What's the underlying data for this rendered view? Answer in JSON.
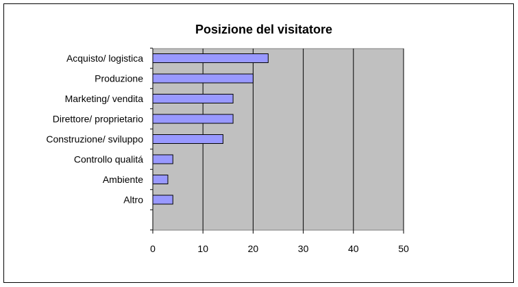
{
  "chart_data": {
    "type": "bar",
    "orientation": "horizontal",
    "title": "Posizione del visitatore",
    "categories": [
      "Acquisto/ logistica",
      "Produzione",
      "Marketing/ vendita",
      "Direttore/ proprietario",
      "Construzione/ sviluppo",
      "Controllo qualitá",
      "Ambiente",
      "Altro"
    ],
    "values": [
      23,
      20,
      16,
      16,
      14,
      4,
      3,
      4
    ],
    "xlim": [
      0,
      50
    ],
    "xticks": [
      "0",
      "10",
      "20",
      "30",
      "40",
      "50"
    ],
    "grid": true,
    "legend": false,
    "colors": {
      "plot_background": "#c0c0c0",
      "bar_fill": "#9999ff",
      "bar_stroke": "#000000",
      "gridline": "#000000"
    }
  }
}
